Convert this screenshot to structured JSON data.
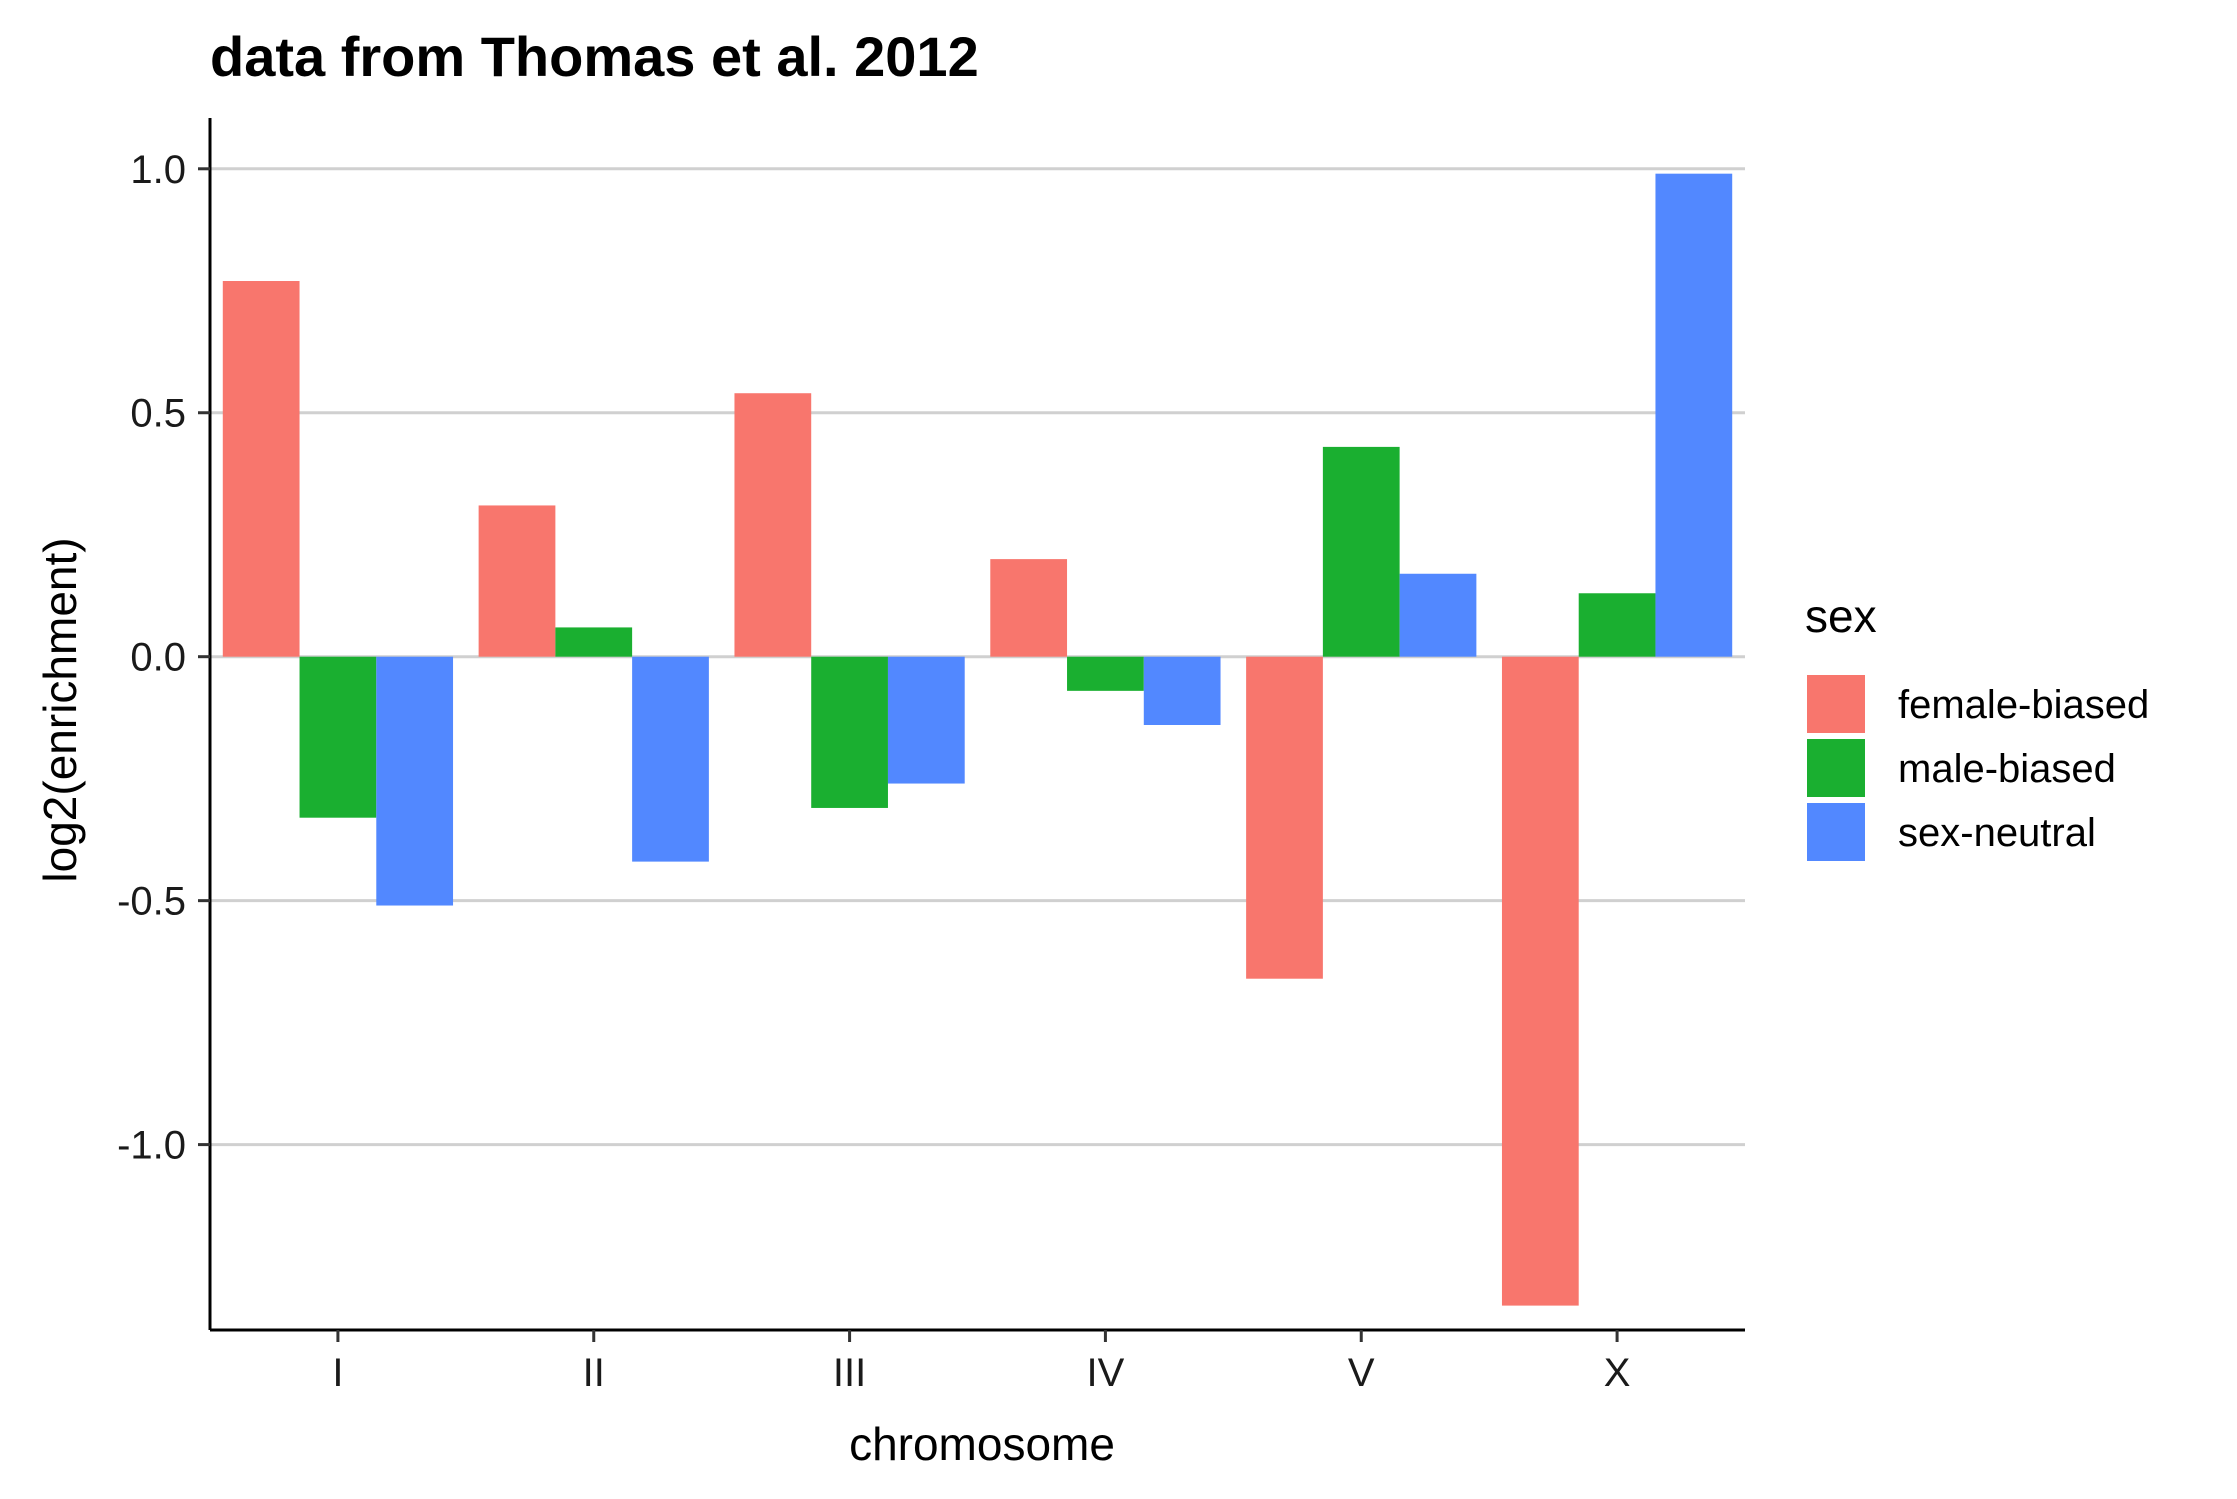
{
  "chart_data": {
    "type": "bar",
    "title": "data from Thomas et al. 2012",
    "xlabel": "chromosome",
    "ylabel": "log2(enrichment)",
    "categories": [
      "I",
      "II",
      "III",
      "IV",
      "V",
      "X"
    ],
    "ylim": [
      -1.38,
      1.1
    ],
    "yticks": [
      1.0,
      0.5,
      0.0,
      -0.5,
      -1.0
    ],
    "ytick_labels": [
      "1.0",
      "0.5",
      "0.0",
      "-0.5",
      "-1.0"
    ],
    "grid": "horizontal major",
    "legend": {
      "title": "sex",
      "position": "right"
    },
    "series": [
      {
        "name": "female-biased",
        "color": "#F8766D",
        "values": [
          0.77,
          0.31,
          0.54,
          0.2,
          -0.66,
          -1.33
        ]
      },
      {
        "name": "male-biased",
        "color": "#1AAF30",
        "values": [
          -0.33,
          0.06,
          -0.31,
          -0.07,
          0.43,
          0.13
        ]
      },
      {
        "name": "sex-neutral",
        "color": "#5288FF",
        "values": [
          -0.51,
          -0.42,
          -0.26,
          -0.14,
          0.17,
          0.99
        ]
      }
    ]
  }
}
